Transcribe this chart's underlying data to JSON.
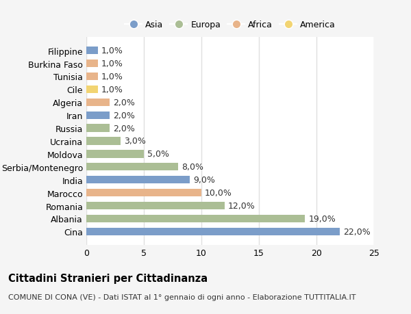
{
  "countries": [
    "Cina",
    "Albania",
    "Romania",
    "Marocco",
    "India",
    "Serbia/Montenegro",
    "Moldova",
    "Ucraina",
    "Russia",
    "Iran",
    "Algeria",
    "Cile",
    "Tunisia",
    "Burkina Faso",
    "Filippine"
  ],
  "values": [
    22.0,
    19.0,
    12.0,
    10.0,
    9.0,
    8.0,
    5.0,
    3.0,
    2.0,
    2.0,
    2.0,
    1.0,
    1.0,
    1.0,
    1.0
  ],
  "continents": [
    "Asia",
    "Europa",
    "Europa",
    "Africa",
    "Asia",
    "Europa",
    "Europa",
    "Europa",
    "Europa",
    "Asia",
    "Africa",
    "America",
    "Africa",
    "Africa",
    "Asia"
  ],
  "continent_colors": {
    "Asia": "#7b9dc9",
    "Europa": "#abbe95",
    "Africa": "#e8b48a",
    "America": "#f2d472"
  },
  "legend_order": [
    "Asia",
    "Europa",
    "Africa",
    "America"
  ],
  "title": "Cittadini Stranieri per Cittadinanza",
  "subtitle": "COMUNE DI CONA (VE) - Dati ISTAT al 1° gennaio di ogni anno - Elaborazione TUTTITALIA.IT",
  "xlim": [
    0,
    25
  ],
  "xticks": [
    0,
    5,
    10,
    15,
    20,
    25
  ],
  "background_color": "#f5f5f5",
  "bar_background": "#ffffff",
  "grid_color": "#e0e0e0",
  "label_fontsize": 9,
  "value_fontsize": 9,
  "title_fontsize": 10.5,
  "subtitle_fontsize": 8
}
